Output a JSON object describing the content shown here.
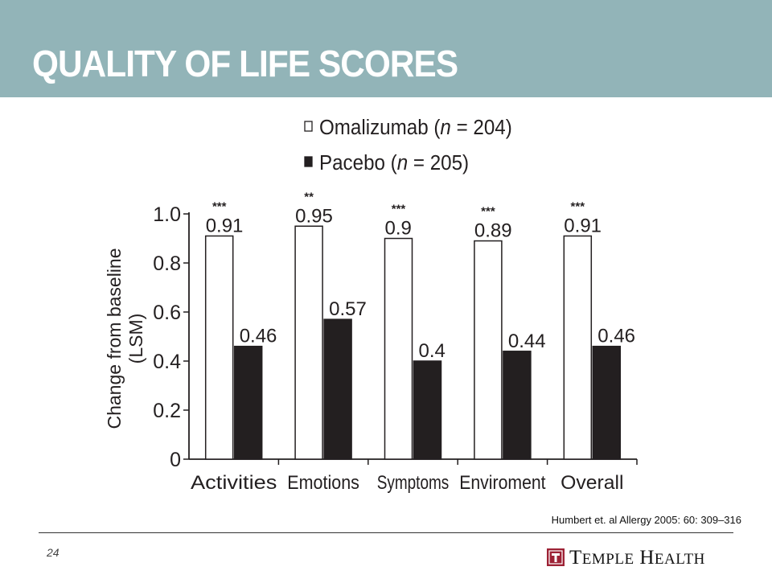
{
  "slide": {
    "title": "QUALITY OF LIFE SCORES",
    "citation": "Humbert et. al  Allergy 2005: 60: 309–316",
    "page_number": "24",
    "logo": {
      "text_first": "T",
      "text_first_rest": "EMPLE",
      "text_second": "H",
      "text_second_rest": "EALTH",
      "accent_color": "#9d2235"
    },
    "title_bar_color": "#92b4b8"
  },
  "chart_data": {
    "type": "bar",
    "categories": [
      "Activities",
      "Emotions",
      "Symptoms",
      "Enviroment",
      "Overall"
    ],
    "series": [
      {
        "label_prefix": "Omalizumab (",
        "label_n": "n",
        "label_suffix": " = 204)",
        "values": [
          0.91,
          0.95,
          0.9,
          0.89,
          0.91
        ],
        "value_labels": [
          "0.91",
          "0.95",
          "0.9",
          "0.89",
          "0.91"
        ],
        "color": "#ffffff"
      },
      {
        "label_prefix": "Pacebo (",
        "label_n": "n",
        "label_suffix": " = 205)",
        "values": [
          0.46,
          0.57,
          0.4,
          0.44,
          0.46
        ],
        "value_labels": [
          "0.46",
          "0.57",
          "0.4",
          "0.44",
          "0.46"
        ],
        "color": "#231f20"
      }
    ],
    "significance": [
      "***",
      "**",
      "***",
      "***",
      "***"
    ],
    "ylabel_line1": "Change from baseline",
    "ylabel_line2": "(LSM)",
    "xlabel": "",
    "ylim": [
      0,
      1.0
    ],
    "yticks": [
      "0",
      "0.2",
      "0.4",
      "0.6",
      "0.8",
      "1.0"
    ],
    "legend_position": "top-center",
    "grid": false
  }
}
